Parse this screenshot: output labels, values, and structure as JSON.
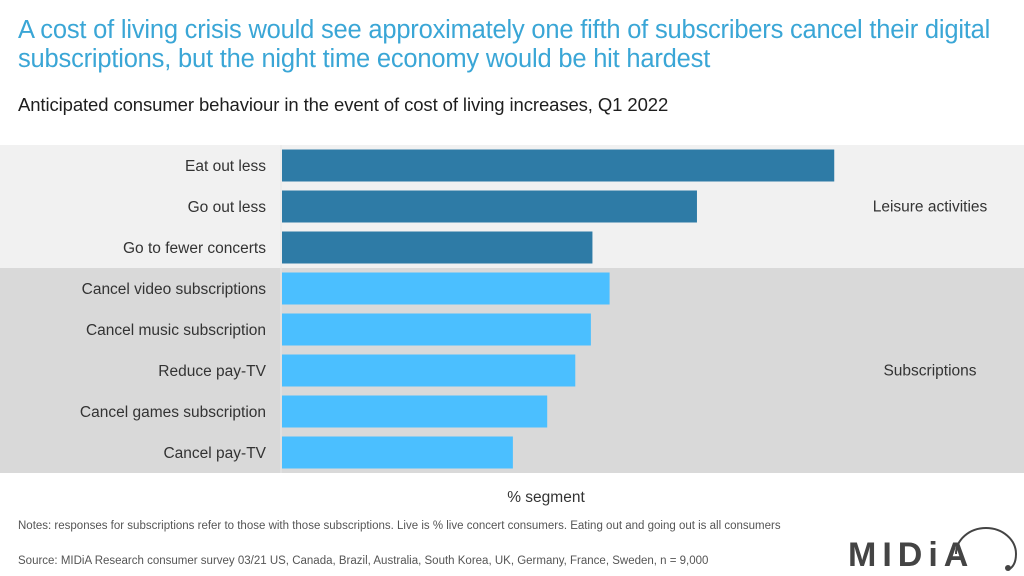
{
  "header": {
    "title": "A cost of living crisis would see approximately one fifth of subscribers cancel their digital subscriptions, but the night time economy would be hit hardest",
    "subtitle": "Anticipated consumer behaviour in the event of cost of living increases, Q1 2022"
  },
  "chart_data": {
    "type": "bar",
    "orientation": "horizontal",
    "title": "Anticipated consumer behaviour in the event of cost of living increases, Q1 2022",
    "xlabel": "% segment",
    "ylabel": "",
    "xlim": [
      0,
      40
    ],
    "grid": false,
    "legend": "none",
    "categories": [
      "Eat out less",
      "Go out less",
      "Go to fewer concerts",
      "Cancel video subscriptions",
      "Cancel music subscription",
      "Reduce pay-TV",
      "Cancel games subscription",
      "Cancel pay-TV"
    ],
    "values": [
      35.4,
      26.6,
      19.9,
      21.0,
      19.8,
      18.8,
      17.0,
      14.8
    ],
    "groups": [
      {
        "name": "Leisure activities",
        "start": 0,
        "end": 2,
        "color": "#2e7ba6",
        "band": "#f1f1f1"
      },
      {
        "name": "Subscriptions",
        "start": 3,
        "end": 7,
        "color": "#4bbfff",
        "band": "#d9d9d9"
      }
    ]
  },
  "footer": {
    "notes": "Notes: responses for subscriptions refer to those with those subscriptions. Live is % live concert consumers. Eating out and going out is all consumers",
    "source": "Source: MIDiA Research consumer survey 03/21 US, Canada, Brazil, Australia, South Korea, UK, Germany, France, Sweden, n = 9,000",
    "logo_text": "MIDiA"
  }
}
